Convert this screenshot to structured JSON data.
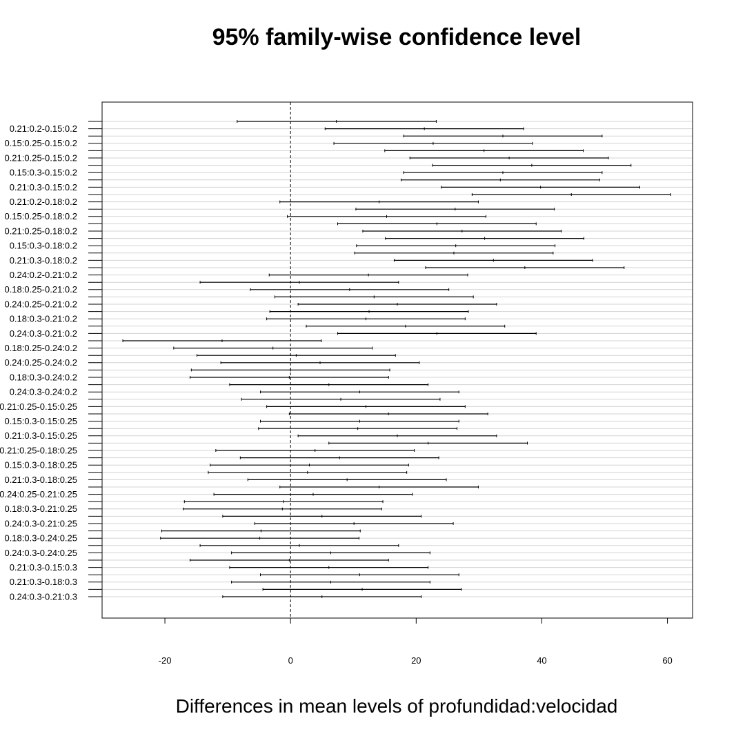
{
  "chart_data": {
    "type": "interval",
    "title": "95% family-wise confidence level",
    "xlabel": "Differences in mean levels of profundidad:velocidad",
    "ylabel": "",
    "xlim": [
      -30,
      64
    ],
    "x_ticks": [
      -20,
      0,
      20,
      40,
      60
    ],
    "x_tick_labels": [
      "-20",
      "0",
      "20",
      "40",
      "60"
    ],
    "reference_line": 0,
    "grid": true,
    "comparisons": [
      {
        "label": "0.21:0.2-0.15:0.2",
        "lwr": -8.5,
        "diff": 7.3,
        "upr": 23.2
      },
      {
        "label": "",
        "lwr": 5.5,
        "diff": 21.3,
        "upr": 37.1
      },
      {
        "label": "0.15:0.25-0.15:0.2",
        "lwr": 18.0,
        "diff": 33.8,
        "upr": 49.6
      },
      {
        "label": "",
        "lwr": 6.9,
        "diff": 22.7,
        "upr": 38.5
      },
      {
        "label": "0.21:0.25-0.15:0.2",
        "lwr": 15.0,
        "diff": 30.8,
        "upr": 46.6
      },
      {
        "label": "",
        "lwr": 19.0,
        "diff": 34.8,
        "upr": 50.6
      },
      {
        "label": "0.15:0.3-0.15:0.2",
        "lwr": 22.6,
        "diff": 38.4,
        "upr": 54.2
      },
      {
        "label": "",
        "lwr": 18.0,
        "diff": 33.8,
        "upr": 49.6
      },
      {
        "label": "0.21:0.3-0.15:0.2",
        "lwr": 17.6,
        "diff": 33.4,
        "upr": 49.2
      },
      {
        "label": "",
        "lwr": 24.0,
        "diff": 39.8,
        "upr": 55.6
      },
      {
        "label": "0.21:0.2-0.18:0.2",
        "lwr": 28.9,
        "diff": 44.7,
        "upr": 60.5
      },
      {
        "label": "",
        "lwr": -1.7,
        "diff": 14.1,
        "upr": 29.9
      },
      {
        "label": "0.15:0.25-0.18:0.2",
        "lwr": 10.4,
        "diff": 26.2,
        "upr": 42.0
      },
      {
        "label": "",
        "lwr": -0.5,
        "diff": 15.3,
        "upr": 31.1
      },
      {
        "label": "0.21:0.25-0.18:0.2",
        "lwr": 7.5,
        "diff": 23.3,
        "upr": 39.1
      },
      {
        "label": "",
        "lwr": 11.5,
        "diff": 27.3,
        "upr": 43.1
      },
      {
        "label": "0.15:0.3-0.18:0.2",
        "lwr": 15.1,
        "diff": 30.9,
        "upr": 46.7
      },
      {
        "label": "",
        "lwr": 10.5,
        "diff": 26.3,
        "upr": 42.1
      },
      {
        "label": "0.21:0.3-0.18:0.2",
        "lwr": 10.2,
        "diff": 26.0,
        "upr": 41.8
      },
      {
        "label": "",
        "lwr": 16.5,
        "diff": 32.3,
        "upr": 48.1
      },
      {
        "label": "0.24:0.2-0.21:0.2",
        "lwr": 21.5,
        "diff": 37.3,
        "upr": 53.1
      },
      {
        "label": "",
        "lwr": -3.4,
        "diff": 12.4,
        "upr": 28.2
      },
      {
        "label": "0.18:0.25-0.21:0.2",
        "lwr": -14.4,
        "diff": 1.4,
        "upr": 17.2
      },
      {
        "label": "",
        "lwr": -6.4,
        "diff": 9.4,
        "upr": 25.2
      },
      {
        "label": "0.24:0.25-0.21:0.2",
        "lwr": -2.5,
        "diff": 13.3,
        "upr": 29.1
      },
      {
        "label": "",
        "lwr": 1.2,
        "diff": 17.0,
        "upr": 32.8
      },
      {
        "label": "0.18:0.3-0.21:0.2",
        "lwr": -3.3,
        "diff": 12.5,
        "upr": 28.3
      },
      {
        "label": "",
        "lwr": -3.8,
        "diff": 12.0,
        "upr": 27.8
      },
      {
        "label": "0.24:0.3-0.21:0.2",
        "lwr": 2.5,
        "diff": 18.3,
        "upr": 34.1
      },
      {
        "label": "",
        "lwr": 7.5,
        "diff": 23.3,
        "upr": 39.1
      },
      {
        "label": "0.18:0.25-0.24:0.2",
        "lwr": -26.7,
        "diff": -10.9,
        "upr": 4.9
      },
      {
        "label": "",
        "lwr": -18.6,
        "diff": -2.8,
        "upr": 13.0
      },
      {
        "label": "0.24:0.25-0.24:0.2",
        "lwr": -14.9,
        "diff": 0.9,
        "upr": 16.7
      },
      {
        "label": "",
        "lwr": -11.1,
        "diff": 4.7,
        "upr": 20.5
      },
      {
        "label": "0.18:0.3-0.24:0.2",
        "lwr": -15.8,
        "diff": 0.0,
        "upr": 15.8
      },
      {
        "label": "",
        "lwr": -16.0,
        "diff": -0.2,
        "upr": 15.6
      },
      {
        "label": "0.24:0.3-0.24:0.2",
        "lwr": -9.7,
        "diff": 6.1,
        "upr": 21.9
      },
      {
        "label": "",
        "lwr": -4.8,
        "diff": 11.0,
        "upr": 26.8
      },
      {
        "label": "0.21:0.25-0.15:0.25",
        "lwr": -7.8,
        "diff": 8.0,
        "upr": 23.8
      },
      {
        "label": "",
        "lwr": -3.8,
        "diff": 12.0,
        "upr": 27.8
      },
      {
        "label": "0.15:0.3-0.15:0.25",
        "lwr": -0.2,
        "diff": 15.6,
        "upr": 31.4
      },
      {
        "label": "",
        "lwr": -4.8,
        "diff": 11.0,
        "upr": 26.8
      },
      {
        "label": "0.21:0.3-0.15:0.25",
        "lwr": -5.1,
        "diff": 10.7,
        "upr": 26.5
      },
      {
        "label": "",
        "lwr": 1.2,
        "diff": 17.0,
        "upr": 32.8
      },
      {
        "label": "0.21:0.25-0.18:0.25",
        "lwr": 6.1,
        "diff": 21.9,
        "upr": 37.7
      },
      {
        "label": "",
        "lwr": -11.9,
        "diff": 3.9,
        "upr": 19.7
      },
      {
        "label": "0.15:0.3-0.18:0.25",
        "lwr": -8.0,
        "diff": 7.8,
        "upr": 23.6
      },
      {
        "label": "",
        "lwr": -12.8,
        "diff": 3.0,
        "upr": 18.8
      },
      {
        "label": "0.21:0.3-0.18:0.25",
        "lwr": -13.1,
        "diff": 2.7,
        "upr": 18.5
      },
      {
        "label": "",
        "lwr": -6.8,
        "diff": 9.0,
        "upr": 24.8
      },
      {
        "label": "0.24:0.25-0.21:0.25",
        "lwr": -1.7,
        "diff": 14.1,
        "upr": 29.9
      },
      {
        "label": "",
        "lwr": -12.2,
        "diff": 3.6,
        "upr": 19.4
      },
      {
        "label": "0.18:0.3-0.21:0.25",
        "lwr": -16.9,
        "diff": -1.1,
        "upr": 14.7
      },
      {
        "label": "",
        "lwr": -17.1,
        "diff": -1.3,
        "upr": 14.5
      },
      {
        "label": "0.24:0.3-0.21:0.25",
        "lwr": -10.8,
        "diff": 5.0,
        "upr": 20.8
      },
      {
        "label": "",
        "lwr": -5.7,
        "diff": 10.1,
        "upr": 25.9
      },
      {
        "label": "0.18:0.3-0.24:0.25",
        "lwr": -20.5,
        "diff": -4.7,
        "upr": 11.1
      },
      {
        "label": "",
        "lwr": -20.7,
        "diff": -4.9,
        "upr": 10.9
      },
      {
        "label": "0.24:0.3-0.24:0.25",
        "lwr": -14.4,
        "diff": 1.4,
        "upr": 17.2
      },
      {
        "label": "",
        "lwr": -9.4,
        "diff": 6.4,
        "upr": 22.2
      },
      {
        "label": "0.21:0.3-0.15:0.3",
        "lwr": -16.0,
        "diff": -0.2,
        "upr": 15.6
      },
      {
        "label": "",
        "lwr": -9.7,
        "diff": 6.1,
        "upr": 21.9
      },
      {
        "label": "0.21:0.3-0.18:0.3",
        "lwr": -4.8,
        "diff": 11.0,
        "upr": 26.8
      },
      {
        "label": "",
        "lwr": -9.4,
        "diff": 6.4,
        "upr": 22.2
      },
      {
        "label": "0.24:0.3-0.21:0.3",
        "lwr": -4.4,
        "diff": 11.4,
        "upr": 27.2
      },
      {
        "label": "",
        "lwr": -10.8,
        "diff": 5.0,
        "upr": 20.8
      }
    ]
  },
  "colors": {
    "interval": "#000000",
    "gridline": "#d3d3d3",
    "frame": "#000000",
    "reference_line": "#000000"
  }
}
